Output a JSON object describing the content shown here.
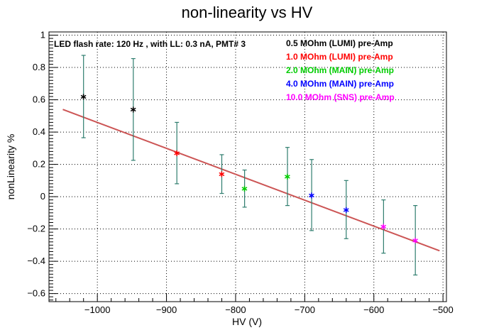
{
  "chart_data": {
    "type": "scatter",
    "title": "non-linearity vs HV",
    "xlabel": "HV (V)",
    "ylabel": "nonLinearity %",
    "xlim": [
      -1070,
      -495
    ],
    "ylim": [
      -0.65,
      1.02
    ],
    "xticks": [
      -1000,
      -900,
      -800,
      -700,
      -600,
      -500
    ],
    "yticks": [
      -0.6,
      -0.4,
      -0.2,
      0,
      0.2,
      0.4,
      0.6,
      0.8,
      1
    ],
    "grid": true,
    "annotation": "LED flash rate: 120 Hz , with LL: 0.3 nA, PMT# 3",
    "legend_position": "top-right",
    "series": [
      {
        "name": "0.5 MOhm (LUMI) pre-Amp",
        "color": "#000000",
        "points": [
          {
            "x": -1020,
            "y": 0.62,
            "err": 0.255
          },
          {
            "x": -948,
            "y": 0.54,
            "err": 0.315
          }
        ]
      },
      {
        "name": "1.0 MOhm (LUMI) pre-Amp",
        "color": "#ff0000",
        "points": [
          {
            "x": -885,
            "y": 0.27,
            "err": 0.19
          },
          {
            "x": -820,
            "y": 0.14,
            "err": 0.12
          }
        ]
      },
      {
        "name": "2.0 MOhm (MAIN) pre-Amp",
        "color": "#00cc00",
        "points": [
          {
            "x": -787,
            "y": 0.05,
            "err": 0.115
          },
          {
            "x": -725,
            "y": 0.125,
            "err": 0.18
          }
        ]
      },
      {
        "name": "4.0 MOhm (MAIN) pre-Amp",
        "color": "#0000ff",
        "points": [
          {
            "x": -690,
            "y": 0.01,
            "err": 0.22
          },
          {
            "x": -640,
            "y": -0.08,
            "err": 0.18
          }
        ]
      },
      {
        "name": "10.0 MOhm (SNS) pre-Amp",
        "color": "#ff00ff",
        "points": [
          {
            "x": -586,
            "y": -0.185,
            "err": 0.165
          },
          {
            "x": -540,
            "y": -0.27,
            "err": 0.215
          }
        ]
      }
    ],
    "fit_line": {
      "x": [
        -1050,
        -505
      ],
      "y": [
        0.54,
        -0.335
      ],
      "color": "#cc5555"
    },
    "errorbar_color": "#2e7d6e"
  }
}
